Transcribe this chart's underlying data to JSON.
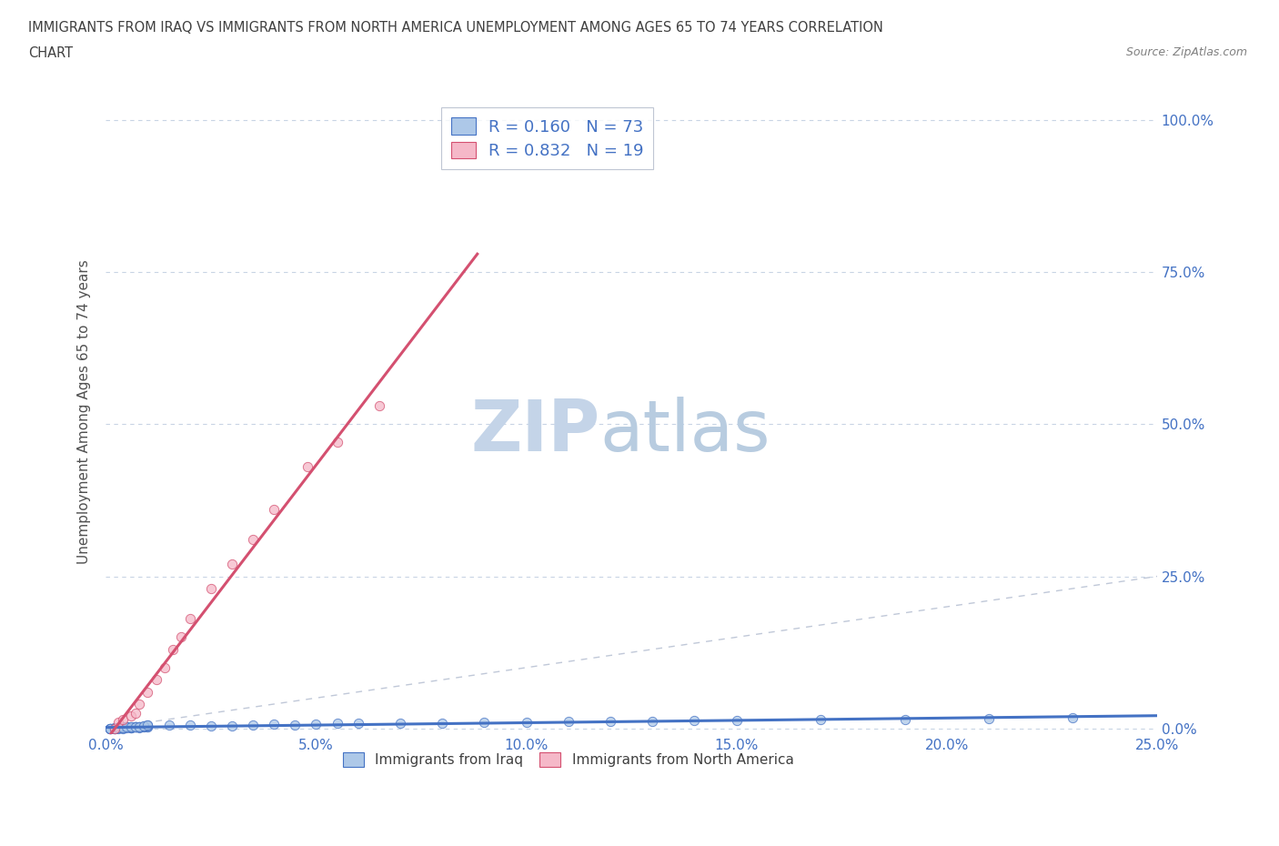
{
  "title_line1": "IMMIGRANTS FROM IRAQ VS IMMIGRANTS FROM NORTH AMERICA UNEMPLOYMENT AMONG AGES 65 TO 74 YEARS CORRELATION",
  "title_line2": "CHART",
  "source_text": "Source: ZipAtlas.com",
  "ylabel": "Unemployment Among Ages 65 to 74 years",
  "xlim": [
    0.0,
    0.25
  ],
  "ylim": [
    -0.01,
    1.05
  ],
  "r_iraq": 0.16,
  "n_iraq": 73,
  "r_north_america": 0.832,
  "n_north_america": 19,
  "color_iraq": "#adc8e8",
  "color_north_america": "#f5b8c8",
  "regression_color_iraq": "#4472c4",
  "regression_color_north_america": "#d45070",
  "diagonal_color": "#c0c8d8",
  "watermark_color": "#c8d8ec",
  "legend_label_iraq": "Immigrants from Iraq",
  "legend_label_north_america": "Immigrants from North America",
  "background_color": "#ffffff",
  "grid_color": "#c8d4e4",
  "title_color": "#404040",
  "axis_label_color": "#505050",
  "tick_color": "#4472c4",
  "yticks": [
    0.0,
    0.25,
    0.5,
    0.75,
    1.0
  ],
  "xticks": [
    0.0,
    0.05,
    0.1,
    0.15,
    0.2,
    0.25
  ],
  "iraq_x": [
    0.001,
    0.002,
    0.003,
    0.004,
    0.005,
    0.006,
    0.007,
    0.008,
    0.009,
    0.01,
    0.001,
    0.002,
    0.003,
    0.003,
    0.004,
    0.005,
    0.006,
    0.007,
    0.008,
    0.01,
    0.001,
    0.002,
    0.003,
    0.004,
    0.005,
    0.006,
    0.007,
    0.008,
    0.009,
    0.01,
    0.001,
    0.002,
    0.003,
    0.004,
    0.005,
    0.006,
    0.007,
    0.008,
    0.009,
    0.01,
    0.001,
    0.002,
    0.003,
    0.004,
    0.005,
    0.006,
    0.007,
    0.008,
    0.009,
    0.01,
    0.015,
    0.02,
    0.025,
    0.03,
    0.035,
    0.04,
    0.045,
    0.05,
    0.055,
    0.06,
    0.07,
    0.08,
    0.09,
    0.1,
    0.11,
    0.12,
    0.13,
    0.14,
    0.15,
    0.17,
    0.19,
    0.21,
    0.23
  ],
  "iraq_y": [
    0.0,
    0.0,
    0.001,
    0.0,
    0.002,
    0.001,
    0.002,
    0.001,
    0.003,
    0.002,
    0.0,
    0.001,
    0.0,
    0.001,
    0.001,
    0.002,
    0.001,
    0.002,
    0.003,
    0.003,
    0.0,
    0.0,
    0.001,
    0.001,
    0.002,
    0.001,
    0.003,
    0.002,
    0.003,
    0.004,
    0.0,
    0.001,
    0.001,
    0.002,
    0.001,
    0.002,
    0.002,
    0.003,
    0.004,
    0.005,
    0.0,
    0.0,
    0.001,
    0.001,
    0.002,
    0.003,
    0.002,
    0.003,
    0.004,
    0.005,
    0.005,
    0.005,
    0.004,
    0.004,
    0.006,
    0.007,
    0.006,
    0.007,
    0.008,
    0.008,
    0.008,
    0.009,
    0.01,
    0.01,
    0.011,
    0.012,
    0.012,
    0.013,
    0.013,
    0.014,
    0.015,
    0.016,
    0.017
  ],
  "na_x": [
    0.002,
    0.003,
    0.004,
    0.006,
    0.007,
    0.008,
    0.01,
    0.012,
    0.014,
    0.016,
    0.018,
    0.02,
    0.025,
    0.03,
    0.035,
    0.04,
    0.048,
    0.055,
    0.065
  ],
  "na_y": [
    0.0,
    0.01,
    0.015,
    0.02,
    0.025,
    0.04,
    0.06,
    0.08,
    0.1,
    0.13,
    0.15,
    0.18,
    0.23,
    0.27,
    0.31,
    0.36,
    0.43,
    0.47,
    0.53
  ]
}
